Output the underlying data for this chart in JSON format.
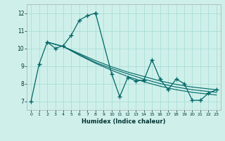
{
  "xlabel": "Humidex (Indice chaleur)",
  "bg_color": "#cff0ea",
  "grid_color": "#aaddd8",
  "line_color": "#006666",
  "xlim": [
    -0.5,
    23.5
  ],
  "ylim": [
    6.5,
    12.5
  ],
  "xticks": [
    0,
    1,
    2,
    3,
    4,
    5,
    6,
    7,
    8,
    9,
    10,
    11,
    12,
    13,
    14,
    15,
    16,
    17,
    18,
    19,
    20,
    21,
    22,
    23
  ],
  "yticks": [
    7,
    8,
    9,
    10,
    11,
    12
  ],
  "main_series": [
    [
      0,
      7.0
    ],
    [
      1,
      9.1
    ],
    [
      2,
      10.35
    ],
    [
      3,
      10.0
    ],
    [
      4,
      10.15
    ],
    [
      5,
      10.75
    ],
    [
      6,
      11.6
    ],
    [
      7,
      11.85
    ],
    [
      8,
      12.0
    ]
  ],
  "main_series2": [
    [
      8,
      12.0
    ],
    [
      10,
      8.55
    ],
    [
      11,
      7.25
    ],
    [
      12,
      8.35
    ],
    [
      13,
      8.15
    ],
    [
      14,
      8.2
    ],
    [
      15,
      9.35
    ],
    [
      16,
      8.25
    ],
    [
      17,
      7.65
    ],
    [
      18,
      8.25
    ],
    [
      19,
      8.0
    ],
    [
      20,
      7.05
    ],
    [
      21,
      7.05
    ],
    [
      22,
      7.45
    ],
    [
      23,
      7.65
    ]
  ],
  "line1": [
    [
      2,
      10.35
    ],
    [
      4,
      10.1
    ],
    [
      6,
      9.6
    ],
    [
      8,
      9.15
    ],
    [
      10,
      8.75
    ],
    [
      12,
      8.4
    ],
    [
      14,
      8.1
    ],
    [
      16,
      7.85
    ],
    [
      18,
      7.65
    ],
    [
      20,
      7.5
    ],
    [
      22,
      7.4
    ],
    [
      23,
      7.35
    ]
  ],
  "line2": [
    [
      2,
      10.35
    ],
    [
      4,
      10.1
    ],
    [
      6,
      9.65
    ],
    [
      8,
      9.2
    ],
    [
      10,
      8.85
    ],
    [
      12,
      8.55
    ],
    [
      14,
      8.25
    ],
    [
      16,
      8.0
    ],
    [
      18,
      7.8
    ],
    [
      20,
      7.65
    ],
    [
      22,
      7.55
    ],
    [
      23,
      7.5
    ]
  ],
  "line3": [
    [
      2,
      10.35
    ],
    [
      4,
      10.1
    ],
    [
      6,
      9.7
    ],
    [
      8,
      9.3
    ],
    [
      10,
      8.95
    ],
    [
      12,
      8.65
    ],
    [
      14,
      8.4
    ],
    [
      16,
      8.15
    ],
    [
      18,
      7.95
    ],
    [
      20,
      7.8
    ],
    [
      22,
      7.7
    ],
    [
      23,
      7.65
    ]
  ]
}
